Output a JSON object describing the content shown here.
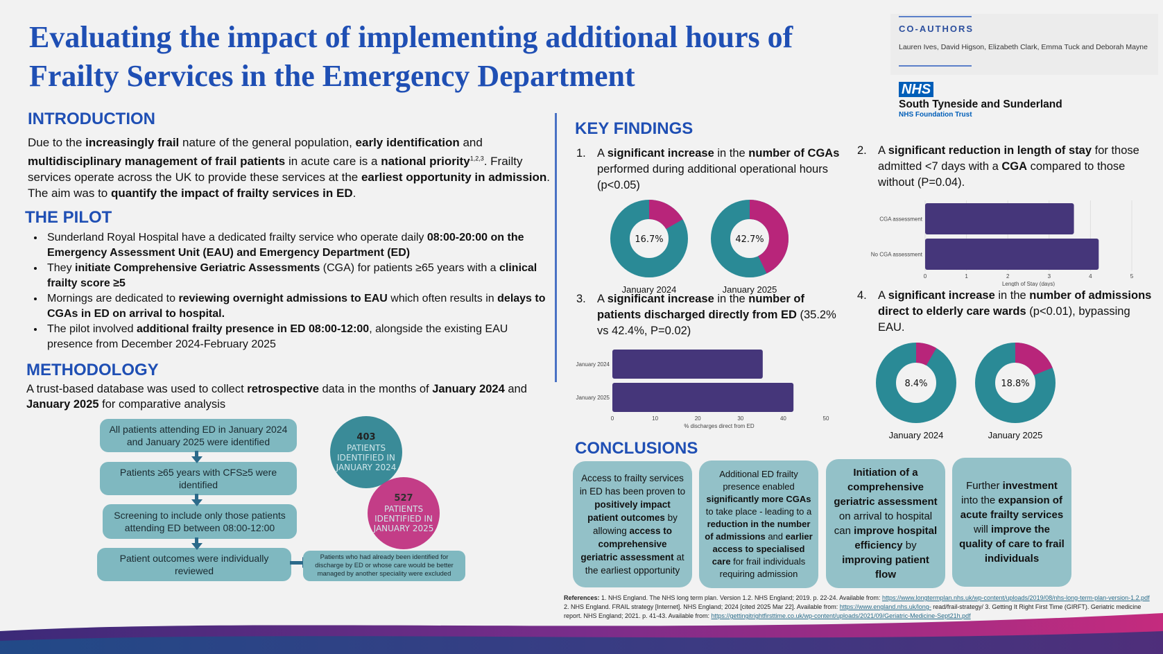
{
  "title": "Evaluating the impact of implementing additional hours of Frailty Services in the Emergency Department",
  "coauthors": {
    "heading": "CO-AUTHORS",
    "names": "Lauren Ives, David Higson, Elizabeth Clark, Emma Tuck and Deborah Mayne"
  },
  "logo": {
    "nhs": "NHS",
    "org": "South Tyneside and Sunderland",
    "sub": "NHS Foundation Trust",
    "color": "#005eb8"
  },
  "introduction": {
    "heading": "INTRODUCTION",
    "segs": [
      {
        "t": "Due to the "
      },
      {
        "t": "increasingly frail",
        "b": 1
      },
      {
        "t": " nature of the general population, "
      },
      {
        "t": "early identification",
        "b": 1
      },
      {
        "t": " and "
      },
      {
        "t": "multidisciplinary management of frail patients",
        "b": 1
      },
      {
        "t": " in acute care is a "
      },
      {
        "t": "national priority",
        "b": 1
      },
      {
        "t": "1,2,3",
        "sup": 1
      },
      {
        "t": ". Frailty services operate across the UK to provide these services at the "
      },
      {
        "t": "earliest opportunity in admission",
        "b": 1
      },
      {
        "t": ". The aim was to "
      },
      {
        "t": "quantify the impact of frailty services in ED",
        "b": 1
      },
      {
        "t": "."
      }
    ]
  },
  "pilot": {
    "heading": "THE PILOT",
    "bullets": [
      [
        {
          "t": "Sunderland Royal Hospital have a dedicated frailty service who operate daily "
        },
        {
          "t": "08:00-20:00 on the Emergency Assessment Unit (EAU) and Emergency Department (ED)",
          "b": 1
        }
      ],
      [
        {
          "t": "They "
        },
        {
          "t": "initiate Comprehensive Geriatric Assessments",
          "b": 1
        },
        {
          "t": " (CGA) for patients ≥65 years with a "
        },
        {
          "t": "clinical frailty score ≥5",
          "b": 1
        }
      ],
      [
        {
          "t": "Mornings are dedicated to "
        },
        {
          "t": "reviewing overnight admissions to EAU",
          "b": 1
        },
        {
          "t": " which often results in "
        },
        {
          "t": "delays to CGAs in ED on arrival to hospital.",
          "b": 1
        }
      ],
      [
        {
          "t": "The pilot involved "
        },
        {
          "t": "additional frailty presence in ED 08:00-12:00",
          "b": 1
        },
        {
          "t": ", alongside the existing EAU presence from December 2024-February 2025"
        }
      ]
    ]
  },
  "methodology": {
    "heading": "METHODOLOGY",
    "segs": [
      {
        "t": "A trust-based database was used to collect "
      },
      {
        "t": "retrospective",
        "b": 1
      },
      {
        "t": " data in the months of "
      },
      {
        "t": "January 2024",
        "b": 1
      },
      {
        "t": " and "
      },
      {
        "t": "January 2025",
        "b": 1
      },
      {
        "t": " for comparative analysis"
      }
    ],
    "flow": [
      "All patients attending ED in January 2024 and January 2025 were identified",
      "Patients ≥65 years with CFS≥5 were identified",
      "Screening to include only those patients attending ED between 08:00-12:00",
      "Patient outcomes were individually reviewed"
    ],
    "excluded": "Patients who had already been identified for discharge by ED or whose care would be better managed by another speciality were excluded",
    "circles": [
      {
        "count": "403",
        "text": "PATIENTS IDENTIFIED IN JANUARY 2024",
        "color": "#3a8b98"
      },
      {
        "count": "527",
        "text": "PATIENTS IDENTIFIED IN JANUARY 2025",
        "color": "#c0307f"
      }
    ]
  },
  "key_findings": {
    "heading": "KEY FINDINGS",
    "items": [
      {
        "n": "1.",
        "segs": [
          {
            "t": "A "
          },
          {
            "t": "significant increase",
            "b": 1
          },
          {
            "t": " in the "
          },
          {
            "t": "number of CGAs",
            "b": 1
          },
          {
            "t": " performed during additional operational hours (p<0.05)"
          }
        ]
      },
      {
        "n": "2.",
        "segs": [
          {
            "t": "A "
          },
          {
            "t": "significant reduction in length of stay",
            "b": 1
          },
          {
            "t": " for those admitted <7 days with a "
          },
          {
            "t": "CGA",
            "b": 1
          },
          {
            "t": " compared to those without (P=0.04)."
          }
        ]
      },
      {
        "n": "3.",
        "segs": [
          {
            "t": "A "
          },
          {
            "t": "significant increase",
            "b": 1
          },
          {
            "t": " in the "
          },
          {
            "t": "number of patients discharged directly from ED",
            "b": 1
          },
          {
            "t": " (35.2% vs 42.4%, P=0.02)"
          }
        ]
      },
      {
        "n": "4.",
        "segs": [
          {
            "t": "A "
          },
          {
            "t": "significant increase",
            "b": 1
          },
          {
            "t": " in the "
          },
          {
            "t": "number of admissions direct to elderly care wards",
            "b": 1
          },
          {
            "t": " (p<0.01), bypassing EAU."
          }
        ]
      }
    ]
  },
  "chart_data": [
    {
      "type": "pie",
      "donut": true,
      "categories": [
        "January 2024",
        "January 2025"
      ],
      "values": [
        16.7,
        42.7
      ],
      "labels": [
        "16.7%",
        "42.7%"
      ],
      "colors": {
        "highlight": "#b8257a",
        "rest": "#2a8a96"
      }
    },
    {
      "type": "bar",
      "orientation": "horizontal",
      "categories": [
        "CGA assessment",
        "No CGA assessment"
      ],
      "values": [
        3.6,
        4.2
      ],
      "xlabel": "Length of Stay (days)",
      "xlim": [
        0,
        5
      ],
      "ticks": [
        "0",
        "1",
        "2",
        "3",
        "4",
        "5"
      ],
      "color": "#45367a",
      "grid": true
    },
    {
      "type": "bar",
      "orientation": "horizontal",
      "categories": [
        "January 2024",
        "January 2025"
      ],
      "values": [
        35.2,
        42.4
      ],
      "xlabel": "% discharges direct from ED",
      "xlim": [
        0,
        50
      ],
      "ticks": [
        "0",
        "10",
        "20",
        "30",
        "40",
        "50"
      ],
      "color": "#45367a",
      "grid": false
    },
    {
      "type": "pie",
      "donut": true,
      "categories": [
        "January 2024",
        "January 2025"
      ],
      "values": [
        8.4,
        18.8
      ],
      "labels": [
        "8.4%",
        "18.8%"
      ],
      "colors": {
        "highlight": "#b8257a",
        "rest": "#2a8a96"
      }
    }
  ],
  "conclusions": {
    "heading": "CONCLUSIONS",
    "boxes": [
      [
        {
          "t": "Access to frailty services in ED has been proven to "
        },
        {
          "t": "positively impact patient outcomes",
          "b": 1
        },
        {
          "t": " by allowing "
        },
        {
          "t": "access to comprehensive geriatric assessment",
          "b": 1
        },
        {
          "t": " at the earliest opportunity"
        }
      ],
      [
        {
          "t": "Additional ED frailty presence enabled "
        },
        {
          "t": "significantly more CGAs",
          "b": 1
        },
        {
          "t": " to take place - leading to a "
        },
        {
          "t": "reduction in the number of admissions",
          "b": 1
        },
        {
          "t": " and "
        },
        {
          "t": "earlier access to specialised care",
          "b": 1
        },
        {
          "t": " for frail individuals requiring admission"
        }
      ],
      [
        {
          "t": "Initiation of a comprehensive geriatric assessment",
          "b": 1
        },
        {
          "t": " on arrival to hospital can "
        },
        {
          "t": "improve hospital efficiency",
          "b": 1
        },
        {
          "t": " by "
        },
        {
          "t": "improving patient flow",
          "b": 1
        }
      ],
      [
        {
          "t": "Further "
        },
        {
          "t": "investment",
          "b": 1
        },
        {
          "t": " into the "
        },
        {
          "t": "expansion of acute frailty services",
          "b": 1
        },
        {
          "t": " will "
        },
        {
          "t": "improve the quality of care to frail individuals",
          "b": 1
        }
      ]
    ]
  },
  "references": [
    {
      "t": "References:",
      "b": 1
    },
    {
      "t": " 1. NHS England. The NHS long term plan. Version 1.2. NHS England; 2019. p. 22-24. Available from: "
    },
    {
      "t": "https://www.longtermplan.nhs.uk/wp-content/uploads/2019/08/nhs-long-term-plan-version-1.2.pdf",
      "a": 1
    },
    {
      "t": " 2. NHS England. FRAIL strategy [Internet]. NHS England; 2024 [cited 2025 Mar 22]. Available from: "
    },
    {
      "t": "https://www.england.nhs.uk/long-",
      "a": 1
    },
    {
      "t": " read/frail-strategy/ 3. Getting It Right First Time (GIRFT). Geriatric medicine report. NHS England; 2021. p. 41-43. Available from: "
    },
    {
      "t": "https://gettingitrightfirsttime.co.uk/wp-content/uploads/2021/09/Geriatric-Medicine-Sept21h.pdf",
      "a": 1
    }
  ]
}
